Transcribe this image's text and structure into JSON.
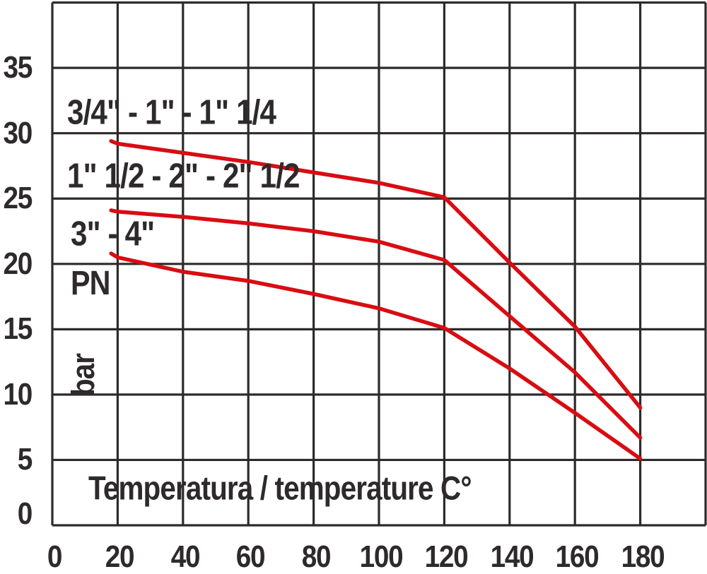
{
  "chart_data": {
    "type": "line",
    "title": "",
    "xlabel": "Temperatura / temperature C°",
    "ylabel_primary": "PN",
    "ylabel_secondary": "bar",
    "xlim": [
      0,
      200
    ],
    "ylim": [
      0,
      40
    ],
    "x_grid_step": 20,
    "y_grid_step": 5,
    "grid": true,
    "legend_position": "labels-inside-plot",
    "x_ticks": [
      0,
      20,
      40,
      60,
      80,
      100,
      120,
      140,
      160,
      180
    ],
    "y_ticks": [
      0,
      5,
      10,
      15,
      20,
      25,
      30,
      35
    ],
    "series": [
      {
        "label": "3/4\" - 1\" - 1\" 1/4",
        "x": [
          18,
          20,
          40,
          60,
          80,
          100,
          120,
          140,
          160,
          180
        ],
        "values": [
          29.4,
          29.2,
          28.5,
          27.8,
          27.0,
          26.2,
          25.1,
          20.1,
          15.2,
          9.0
        ]
      },
      {
        "label": "1\" 1/2 - 2\" - 2\" 1/2",
        "x": [
          18,
          20,
          40,
          60,
          80,
          100,
          120,
          140,
          160,
          180
        ],
        "values": [
          24.1,
          24.0,
          23.6,
          23.1,
          22.5,
          21.7,
          20.3,
          16.0,
          11.7,
          6.7
        ]
      },
      {
        "label": "3\" - 4\"",
        "x": [
          18,
          20,
          40,
          60,
          80,
          100,
          120,
          140,
          160,
          180
        ],
        "values": [
          20.8,
          20.5,
          19.4,
          18.7,
          17.7,
          16.6,
          15.1,
          12.0,
          8.6,
          5.1
        ]
      }
    ],
    "colors": {
      "curve": "#d80d12",
      "grid": "#2e2a2b",
      "text": "#2e2a2b",
      "background": "#ffffff"
    }
  }
}
